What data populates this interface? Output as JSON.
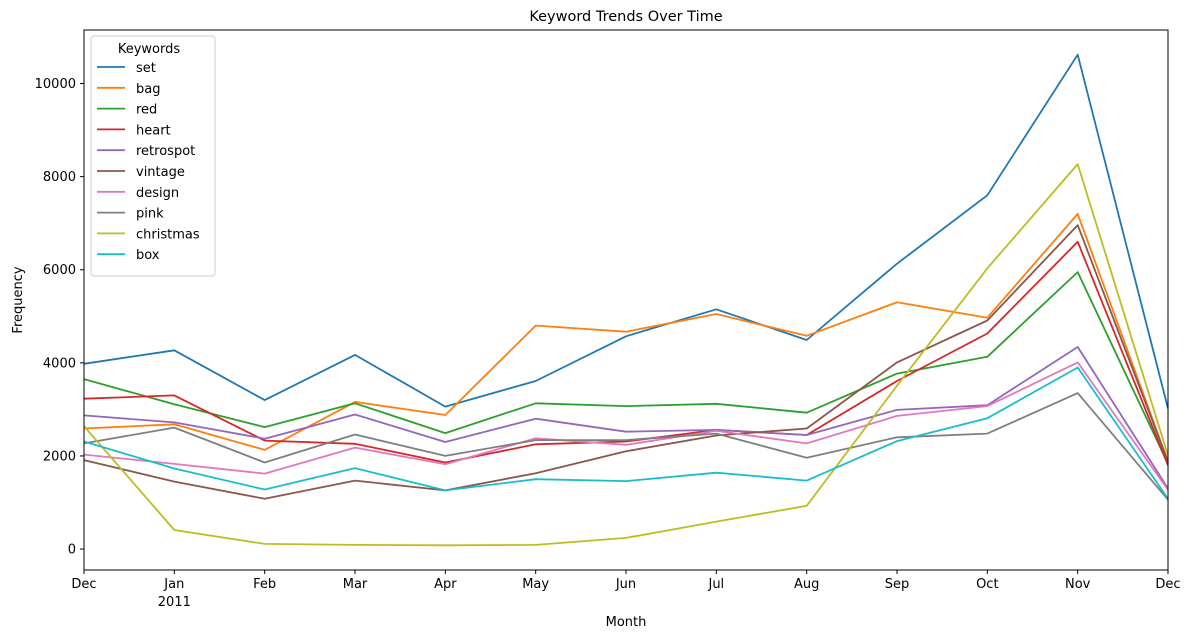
{
  "chart_data": {
    "type": "line",
    "title": "Keyword Trends Over Time",
    "xlabel": "Month",
    "ylabel": "Frequency",
    "x": [
      "2010-12",
      "2011-01",
      "2011-02",
      "2011-03",
      "2011-04",
      "2011-05",
      "2011-06",
      "2011-07",
      "2011-08",
      "2011-09",
      "2011-10",
      "2011-11",
      "2011-12"
    ],
    "x_tick_labels": [
      "Dec",
      "Jan",
      "Feb",
      "Mar",
      "Apr",
      "May",
      "Jun",
      "Jul",
      "Aug",
      "Sep",
      "Oct",
      "Nov",
      "Dec"
    ],
    "x_year_label": "2011",
    "y_ticks": [
      0,
      2000,
      4000,
      6000,
      8000,
      10000
    ],
    "ylim": [
      -450,
      11150
    ],
    "grid": false,
    "legend": {
      "title": "Keywords",
      "placement": "top-left"
    },
    "series": [
      {
        "name": "set",
        "color": "#1f77b4",
        "values": [
          3980,
          4270,
          3200,
          4170,
          3060,
          3610,
          4570,
          5150,
          4490,
          6130,
          7600,
          10620,
          3020
        ]
      },
      {
        "name": "bag",
        "color": "#ff7f0e",
        "values": [
          2590,
          2680,
          2130,
          3160,
          2880,
          4800,
          4670,
          5050,
          4580,
          5300,
          4970,
          7200,
          1880
        ]
      },
      {
        "name": "red",
        "color": "#2ca02c",
        "values": [
          3650,
          3110,
          2620,
          3130,
          2490,
          3130,
          3070,
          3120,
          2930,
          3770,
          4130,
          5950,
          1830
        ]
      },
      {
        "name": "heart",
        "color": "#d62728",
        "values": [
          3230,
          3300,
          2330,
          2260,
          1860,
          2250,
          2310,
          2560,
          2450,
          3610,
          4630,
          6600,
          1800
        ]
      },
      {
        "name": "retrospot",
        "color": "#9467bd",
        "values": [
          2870,
          2720,
          2370,
          2890,
          2300,
          2800,
          2520,
          2560,
          2450,
          2990,
          3090,
          4340,
          1300
        ]
      },
      {
        "name": "vintage",
        "color": "#8c564b",
        "values": [
          1910,
          1450,
          1080,
          1470,
          1260,
          1630,
          2100,
          2440,
          2590,
          4010,
          4910,
          6960,
          1880
        ]
      },
      {
        "name": "design",
        "color": "#e377c2",
        "values": [
          2030,
          1830,
          1620,
          2180,
          1820,
          2380,
          2240,
          2540,
          2270,
          2860,
          3070,
          4010,
          1270
        ]
      },
      {
        "name": "pink",
        "color": "#7f7f7f",
        "values": [
          2270,
          2610,
          1860,
          2460,
          2000,
          2340,
          2340,
          2480,
          1960,
          2400,
          2480,
          3350,
          1060
        ]
      },
      {
        "name": "christmas",
        "color": "#bcbd22",
        "values": [
          2640,
          410,
          110,
          90,
          80,
          90,
          240,
          590,
          930,
          3510,
          6030,
          8270,
          2010
        ]
      },
      {
        "name": "box",
        "color": "#17becf",
        "values": [
          2310,
          1730,
          1280,
          1740,
          1260,
          1500,
          1460,
          1640,
          1470,
          2320,
          2810,
          3900,
          1080
        ]
      }
    ]
  }
}
